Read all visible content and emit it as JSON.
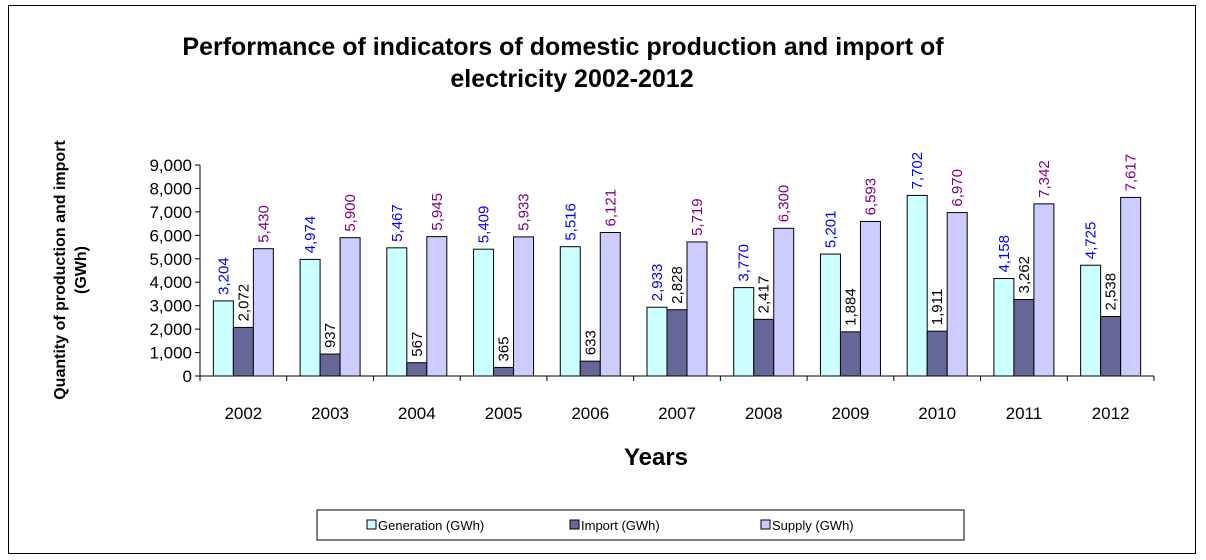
{
  "chart_data": {
    "type": "bar",
    "title": "Performance of indicators of domestic production and import of electricity 2002-2012",
    "title_lines": [
      "Performance  of  indicators  of  domestic  production  and  import  of",
      "electricity  2002-2012"
    ],
    "xlabel": "Years",
    "ylabel": "Quantity of  production and import (GWh)",
    "ylabel_lines": [
      "Quantity of  production and import",
      "(GWh)"
    ],
    "ylim": [
      0,
      9000
    ],
    "yticks": [
      0,
      1000,
      2000,
      3000,
      4000,
      5000,
      6000,
      7000,
      8000,
      9000
    ],
    "ytick_labels": [
      "0",
      "1,000",
      "2,000",
      "3,000",
      "4,000",
      "5,000",
      "6,000",
      "7,000",
      "8,000",
      "9,000"
    ],
    "grid": false,
    "legend_position": "bottom",
    "categories": [
      "2002",
      "2003",
      "2004",
      "2005",
      "2006",
      "2007",
      "2008",
      "2009",
      "2010",
      "2011",
      "2012"
    ],
    "series": [
      {
        "name": "Generation  (GWh)",
        "fill": "#ccffff",
        "label_color": "#0000ff",
        "values": [
          3204,
          4974,
          5467,
          5409,
          5516,
          2933,
          3770,
          5201,
          7702,
          4158,
          4725
        ],
        "labels": [
          "3,204",
          "4,974",
          "5,467",
          "5,409",
          "5,516",
          "2,933",
          "3,770",
          "5,201",
          "7,702",
          "4,158",
          "4,725"
        ]
      },
      {
        "name": "Import  (GWh)",
        "fill": "#666699",
        "label_color": "#000000",
        "values": [
          2072,
          937,
          567,
          365,
          633,
          2828,
          2417,
          1884,
          1911,
          3262,
          2538
        ],
        "labels": [
          "2,072",
          "937",
          "567",
          "365",
          "633",
          "2,828",
          "2,417",
          "1,884",
          "1,911",
          "3,262",
          "2,538"
        ]
      },
      {
        "name": "Supply  (GWh)",
        "fill": "#ccccff",
        "label_color": "#800080",
        "values": [
          5430,
          5900,
          5945,
          5933,
          6121,
          5719,
          6300,
          6593,
          6970,
          7342,
          7617
        ],
        "labels": [
          "5,430",
          "5,900",
          "5,945",
          "5,933",
          "6,121",
          "5,719",
          "6,300",
          "6,593",
          "6,970",
          "7,342",
          "7,617"
        ]
      }
    ]
  }
}
